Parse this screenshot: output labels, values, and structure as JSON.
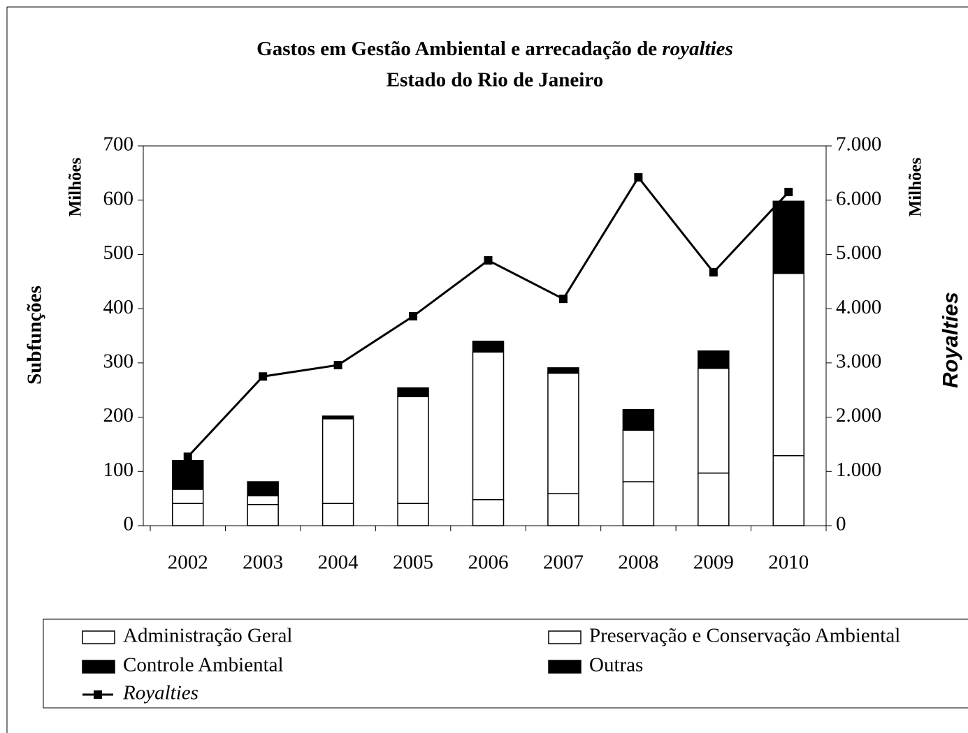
{
  "chart_data": {
    "type": "bar",
    "stacked": true,
    "title": "Gastos em Gestão Ambiental e arrecadação de",
    "title_emphasis": "royalties",
    "subtitle": "Estado do Rio de Janeiro",
    "y_label": "Subfunções",
    "y_unit": "Milhões",
    "y2_label": "Royalties",
    "y2_unit": "Milhões",
    "categories": [
      "2002",
      "2003",
      "2004",
      "2005",
      "2006",
      "2007",
      "2008",
      "2009",
      "2010"
    ],
    "series": [
      {
        "name": "Administração Geral",
        "color": "#ffffff",
        "type": "bar",
        "values": [
          41,
          39,
          41,
          41,
          48,
          59,
          81,
          97,
          129
        ]
      },
      {
        "name": "Preservação e Conservação Ambiental",
        "color": "#ffffff",
        "type": "bar",
        "values": [
          26,
          16,
          156,
          197,
          272,
          222,
          95,
          193,
          336
        ]
      },
      {
        "name": "Controle Ambiental",
        "color": "#000000",
        "type": "bar",
        "values": [
          53,
          26,
          5,
          16,
          20,
          10,
          38,
          32,
          133
        ]
      },
      {
        "name": "Outras",
        "color": "#000000",
        "type": "bar",
        "values": [
          0,
          0,
          0,
          0,
          0,
          0,
          0,
          0,
          0
        ]
      },
      {
        "name": "Royalties",
        "color": "#000000",
        "type": "line",
        "axis": "y2",
        "values": [
          1270,
          2750,
          2960,
          3860,
          4890,
          4180,
          6420,
          4670,
          6150
        ]
      }
    ],
    "ylim": [
      0,
      700
    ],
    "yticks": [
      0,
      100,
      200,
      300,
      400,
      500,
      600,
      700
    ],
    "y2lim": [
      0,
      7000
    ],
    "y2ticks": [
      0,
      {
        "value": 1000,
        "label": "1.000"
      },
      {
        "value": 2000,
        "label": "2.000"
      },
      {
        "value": 3000,
        "label": "3.000"
      },
      {
        "value": 4000,
        "label": "4.000"
      },
      {
        "value": 5000,
        "label": "5.000"
      },
      {
        "value": 6000,
        "label": "6.000"
      },
      {
        "value": 7000,
        "label": "7.000"
      }
    ],
    "grid": false,
    "legend": "bottom"
  }
}
